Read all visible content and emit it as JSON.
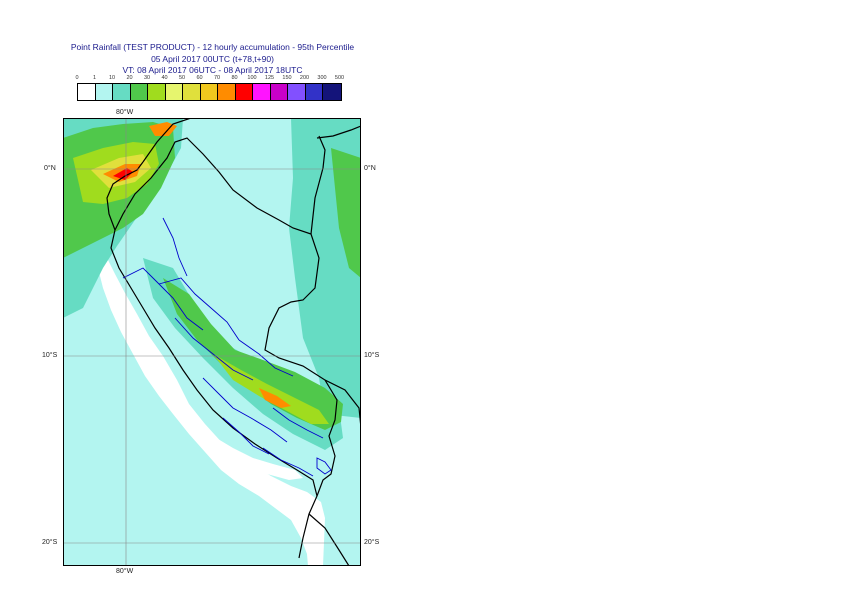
{
  "title": {
    "line1": "Point Rainfall (TEST PRODUCT) - 12 hourly accumulation - 95th Percentile",
    "line2": "05 April 2017 00UTC (t+78,t+90)",
    "line3": "VT: 08 April 2017 06UTC - 08 April 2017 18UTC"
  },
  "scale": {
    "labels": [
      "0",
      "1",
      "10",
      "20",
      "30",
      "40",
      "50",
      "60",
      "70",
      "80",
      "100",
      "125",
      "150",
      "200",
      "300",
      "500"
    ],
    "colors": [
      "#ffffff",
      "#b3f5f0",
      "#66dcc3",
      "#50c84b",
      "#a0dc1e",
      "#e6f56e",
      "#e0e03c",
      "#f0c81e",
      "#ff8c00",
      "#ff0000",
      "#ff14ff",
      "#c800c8",
      "#8250ff",
      "#3232c8",
      "#14147a"
    ]
  },
  "axes": {
    "top_lon": "80°W",
    "bottom_lon": "80°W",
    "lat_left": [
      "0°N",
      "10°S",
      "20°S"
    ],
    "lat_right": [
      "0°N",
      "10°S",
      "20°S"
    ]
  },
  "map": {
    "ocean_color": "#b3f5f0",
    "dry_land_color": "#ffffff",
    "border_color": "#000000",
    "admin_color": "#0000cc",
    "grid_color": "#888888"
  }
}
